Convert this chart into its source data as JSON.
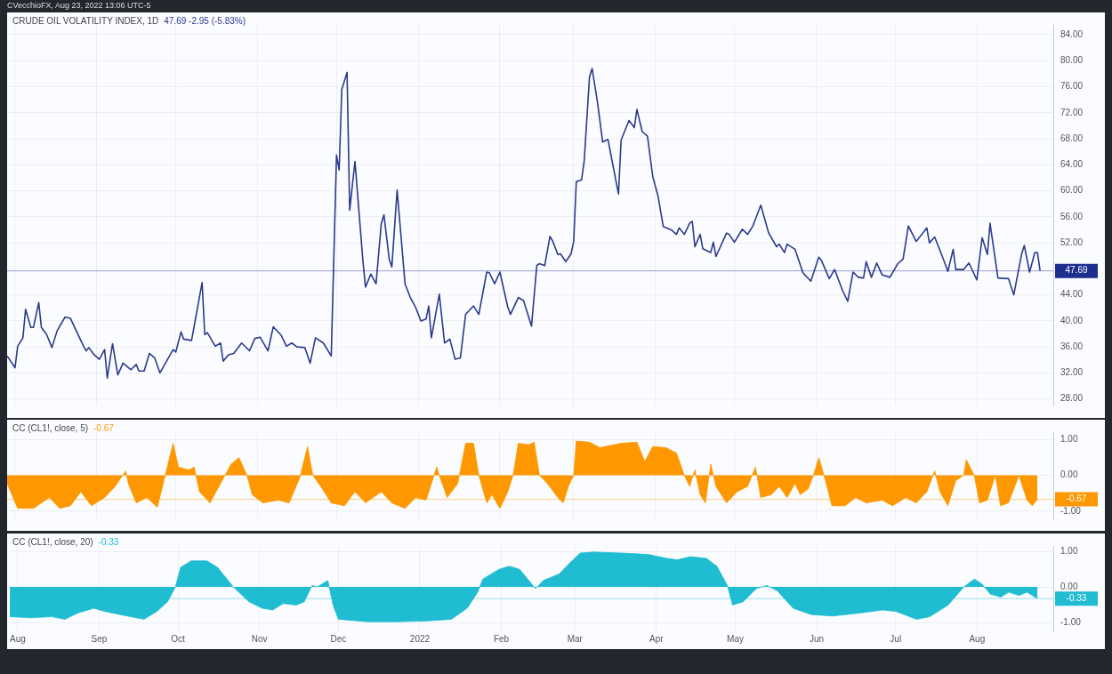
{
  "chart_data": [
    {
      "type": "line",
      "title": "CRUDE OIL VOLATILITY INDEX, 1D",
      "subtitle": "47.69 -2.95 (-5.83%)",
      "annotations": [
        "CVecchioFX, Aug 23, 2022 13:06 UTC-5"
      ],
      "xlim": [
        "2021-07-29",
        "2022-08-30"
      ],
      "xticks": [
        {
          "value": "2021-08-01",
          "label": null
        },
        {
          "value": "2021-09-01",
          "label": null
        },
        {
          "value": "2021-10-01",
          "label": null
        },
        {
          "value": "2021-11-01",
          "label": null
        },
        {
          "value": "2021-12-01",
          "label": null
        },
        {
          "value": "2022-01-01",
          "label": null
        },
        {
          "value": "2022-02-01",
          "label": null
        },
        {
          "value": "2022-03-01",
          "label": null
        },
        {
          "value": "2022-04-01",
          "label": null
        },
        {
          "value": "2022-05-01",
          "label": null
        },
        {
          "value": "2022-06-01",
          "label": null
        },
        {
          "value": "2022-07-01",
          "label": null
        },
        {
          "value": "2022-08-01",
          "label": null
        }
      ],
      "ylim": [
        27,
        85.5
      ],
      "yticks": [
        {
          "value": 28,
          "label": "28.00"
        },
        {
          "value": 32,
          "label": "32.00"
        },
        {
          "value": 36,
          "label": "36.00"
        },
        {
          "value": 40,
          "label": "40.00"
        },
        {
          "value": 44,
          "label": "44.00"
        },
        {
          "value": 52,
          "label": "52.00"
        },
        {
          "value": 56,
          "label": "56.00"
        },
        {
          "value": 60,
          "label": "60.00"
        },
        {
          "value": 64,
          "label": "64.00"
        },
        {
          "value": 68,
          "label": "68.00"
        },
        {
          "value": 72,
          "label": "72.00"
        },
        {
          "value": 76,
          "label": "76.00"
        },
        {
          "value": 80,
          "label": "80.00"
        },
        {
          "value": 84,
          "label": "84.00"
        }
      ],
      "tick_labels": "y",
      "grid": true,
      "legend": false,
      "marker": "none",
      "line_style": "solid",
      "ref_lines": [
        {
          "axis": "y",
          "value": 47.69,
          "label": "47.69",
          "color": "#1c2f8f"
        }
      ],
      "series": [
        {
          "color": "#2a3a8c",
          "x": [
            "2021-07-29",
            "2021-08-01",
            "2021-08-02",
            "2021-08-04",
            "2021-08-05",
            "2021-08-07",
            "2021-08-08",
            "2021-08-10",
            "2021-08-11",
            "2021-08-13",
            "2021-08-15",
            "2021-08-17",
            "2021-08-20",
            "2021-08-22",
            "2021-08-27",
            "2021-08-28",
            "2021-08-29",
            "2021-08-31",
            "2021-09-02",
            "2021-09-04",
            "2021-09-05",
            "2021-09-07",
            "2021-09-09",
            "2021-09-11",
            "2021-09-14",
            "2021-09-16",
            "2021-09-17",
            "2021-09-19",
            "2021-09-21",
            "2021-09-23",
            "2021-09-25",
            "2021-09-30",
            "2021-10-01",
            "2021-10-03",
            "2021-10-04",
            "2021-10-07",
            "2021-10-11",
            "2021-10-12",
            "2021-10-13",
            "2021-10-16",
            "2021-10-18",
            "2021-10-19",
            "2021-10-21",
            "2021-10-23",
            "2021-10-26",
            "2021-10-29",
            "2021-10-31",
            "2021-11-02",
            "2021-11-05",
            "2021-11-07",
            "2021-11-10",
            "2021-11-12",
            "2021-11-14",
            "2021-11-16",
            "2021-11-19",
            "2021-11-21",
            "2021-11-23",
            "2021-11-26",
            "2021-11-29",
            "2021-12-01",
            "2021-12-02",
            "2021-12-03",
            "2021-12-05",
            "2021-12-06",
            "2021-12-08",
            "2021-12-11",
            "2021-12-12",
            "2021-12-14",
            "2021-12-16",
            "2021-12-18",
            "2021-12-19",
            "2021-12-21",
            "2021-12-22",
            "2021-12-24",
            "2021-12-27",
            "2021-12-29",
            "2021-12-31",
            "2022-01-02",
            "2022-01-04",
            "2022-01-05",
            "2022-01-06",
            "2022-01-09",
            "2022-01-11",
            "2022-01-13",
            "2022-01-15",
            "2022-01-17",
            "2022-01-19",
            "2022-01-22",
            "2022-01-24",
            "2022-01-27",
            "2022-01-28",
            "2022-01-30",
            "2022-02-01",
            "2022-02-04",
            "2022-02-05",
            "2022-02-08",
            "2022-02-10",
            "2022-02-13",
            "2022-02-15",
            "2022-02-16",
            "2022-02-18",
            "2022-02-20",
            "2022-02-21",
            "2022-02-23",
            "2022-02-24",
            "2022-02-26",
            "2022-02-28",
            "2022-03-01",
            "2022-03-02",
            "2022-03-04",
            "2022-03-05",
            "2022-03-07",
            "2022-03-08",
            "2022-03-10",
            "2022-03-12",
            "2022-03-14",
            "2022-03-16",
            "2022-03-18",
            "2022-03-19",
            "2022-03-22",
            "2022-03-24",
            "2022-03-25",
            "2022-03-27",
            "2022-03-29",
            "2022-03-31",
            "2022-04-02",
            "2022-04-04",
            "2022-04-07",
            "2022-04-09",
            "2022-04-10",
            "2022-04-12",
            "2022-04-14",
            "2022-04-15",
            "2022-04-16",
            "2022-04-18",
            "2022-04-19",
            "2022-04-22",
            "2022-04-23",
            "2022-04-24",
            "2022-04-28",
            "2022-04-29",
            "2022-05-01",
            "2022-05-04",
            "2022-05-06",
            "2022-05-08",
            "2022-05-11",
            "2022-05-14",
            "2022-05-17",
            "2022-05-18",
            "2022-05-20",
            "2022-05-21",
            "2022-05-24",
            "2022-05-27",
            "2022-05-30",
            "2022-06-02",
            "2022-06-03",
            "2022-06-06",
            "2022-06-08",
            "2022-06-11",
            "2022-06-13",
            "2022-06-15",
            "2022-06-17",
            "2022-06-19",
            "2022-06-20",
            "2022-06-22",
            "2022-06-24",
            "2022-06-26",
            "2022-06-29",
            "2022-07-02",
            "2022-07-04",
            "2022-07-06",
            "2022-07-09",
            "2022-07-13",
            "2022-07-14",
            "2022-07-16",
            "2022-07-19",
            "2022-07-21",
            "2022-07-23",
            "2022-07-24",
            "2022-07-27",
            "2022-07-29",
            "2022-08-01",
            "2022-08-03",
            "2022-08-05",
            "2022-08-06",
            "2022-08-09",
            "2022-08-13",
            "2022-08-15",
            "2022-08-18",
            "2022-08-19",
            "2022-08-21",
            "2022-08-23",
            "2022-08-24",
            "2022-08-25"
          ],
          "values": [
            34.6,
            32.8,
            36.1,
            37.4,
            41.8,
            39.0,
            39.0,
            42.8,
            39.0,
            37.9,
            35.9,
            38.5,
            40.6,
            40.4,
            36.1,
            35.4,
            35.9,
            34.8,
            34.1,
            35.6,
            31.2,
            36.5,
            31.7,
            33.5,
            32.5,
            33.3,
            32.3,
            32.3,
            35.0,
            34.3,
            32.0,
            35.6,
            35.2,
            38.3,
            37.2,
            37.0,
            45.9,
            37.9,
            38.2,
            36.1,
            36.6,
            33.8,
            34.8,
            35.0,
            36.6,
            35.4,
            37.3,
            37.5,
            35.4,
            39.1,
            37.8,
            36.1,
            36.6,
            36.0,
            35.9,
            33.5,
            37.4,
            36.6,
            34.6,
            65.5,
            63.2,
            75.6,
            78.2,
            57.0,
            64.5,
            49.3,
            45.2,
            47.2,
            45.7,
            55.0,
            56.3,
            49.5,
            48.3,
            60.1,
            45.7,
            43.6,
            42.1,
            40.0,
            40.3,
            42.3,
            37.4,
            44.1,
            36.6,
            37.2,
            34.1,
            34.3,
            41.0,
            42.3,
            41.0,
            47.5,
            47.4,
            45.7,
            47.5,
            42.1,
            41.0,
            43.6,
            43.1,
            39.2,
            48.5,
            48.8,
            48.5,
            53.0,
            52.3,
            50.2,
            50.3,
            49.1,
            50.3,
            52.2,
            61.4,
            61.7,
            64.6,
            77.5,
            78.8,
            73.7,
            67.5,
            67.9,
            63.7,
            59.5,
            67.8,
            70.8,
            69.7,
            72.5,
            69.1,
            68.4,
            62.2,
            59.2,
            54.5,
            54.0,
            53.3,
            54.3,
            53.3,
            55.0,
            55.3,
            51.4,
            53.3,
            51.1,
            50.5,
            52.1,
            49.9,
            53.5,
            53.3,
            52.1,
            54.1,
            53.3,
            54.6,
            57.8,
            53.5,
            51.4,
            51.8,
            50.5,
            51.8,
            51.0,
            47.4,
            46.1,
            49.8,
            49.3,
            46.5,
            47.9,
            44.7,
            43.0,
            47.5,
            46.7,
            46.6,
            49.1,
            46.7,
            48.9,
            47.1,
            46.7,
            48.8,
            49.5,
            54.6,
            52.2,
            54.3,
            52.0,
            52.9,
            49.8,
            47.6,
            51.0,
            47.9,
            47.9,
            48.9,
            46.3,
            52.8,
            50.2,
            55.0,
            46.6,
            46.5,
            44.0,
            50.3,
            51.6,
            47.5,
            50.5,
            50.5,
            47.69
          ]
        }
      ]
    },
    {
      "type": "area",
      "title": "CC (CL1!, close, 5)",
      "subtitle": "-0.67",
      "xlim": [
        "2021-07-29",
        "2022-08-30"
      ],
      "xticks": [
        {
          "value": "2021-08-01",
          "label": null
        },
        {
          "value": "2021-09-01",
          "label": null
        },
        {
          "value": "2021-10-01",
          "label": null
        },
        {
          "value": "2021-11-01",
          "label": null
        },
        {
          "value": "2021-12-01",
          "label": null
        },
        {
          "value": "2022-01-01",
          "label": null
        },
        {
          "value": "2022-02-01",
          "label": null
        },
        {
          "value": "2022-03-01",
          "label": null
        },
        {
          "value": "2022-04-01",
          "label": null
        },
        {
          "value": "2022-05-01",
          "label": null
        },
        {
          "value": "2022-06-01",
          "label": null
        },
        {
          "value": "2022-07-01",
          "label": null
        },
        {
          "value": "2022-08-01",
          "label": null
        }
      ],
      "ylim": [
        -1.2,
        1.2
      ],
      "yticks": [
        {
          "value": -1,
          "label": "-1.00"
        },
        {
          "value": 0,
          "label": "0.00"
        },
        {
          "value": 1,
          "label": "1.00"
        }
      ],
      "tick_labels": "y",
      "grid": true,
      "legend": false,
      "marker": "none",
      "ref_lines": [
        {
          "axis": "y",
          "value": -0.67,
          "label": "-0.67",
          "color": "#ff9800"
        }
      ],
      "series": [
        {
          "color": "#ff9800",
          "x": [
            "2021-07-29",
            "2021-08-02",
            "2021-08-08",
            "2021-08-14",
            "2021-08-18",
            "2021-08-22",
            "2021-08-26",
            "2021-08-30",
            "2021-09-04",
            "2021-09-08",
            "2021-09-12",
            "2021-09-13",
            "2021-09-16",
            "2021-09-20",
            "2021-09-24",
            "2021-09-27",
            "2021-09-30",
            "2021-10-02",
            "2021-10-06",
            "2021-10-08",
            "2021-10-10",
            "2021-10-14",
            "2021-10-18",
            "2021-10-22",
            "2021-10-25",
            "2021-10-28",
            "2021-10-30",
            "2021-11-03",
            "2021-11-09",
            "2021-11-13",
            "2021-11-17",
            "2021-11-20",
            "2021-11-22",
            "2021-11-25",
            "2021-11-29",
            "2021-12-04",
            "2021-12-08",
            "2021-12-12",
            "2021-12-18",
            "2021-12-22",
            "2021-12-27",
            "2021-12-31",
            "2022-01-04",
            "2022-01-07",
            "2022-01-08",
            "2022-01-09",
            "2022-01-12",
            "2022-01-16",
            "2022-01-19",
            "2022-01-22",
            "2022-01-24",
            "2022-01-27",
            "2022-01-29",
            "2022-02-01",
            "2022-02-04",
            "2022-02-06",
            "2022-02-08",
            "2022-02-12",
            "2022-02-14",
            "2022-02-16",
            "2022-02-19",
            "2022-02-23",
            "2022-02-25",
            "2022-02-27",
            "2022-03-01",
            "2022-03-02",
            "2022-03-07",
            "2022-03-11",
            "2022-03-19",
            "2022-03-25",
            "2022-03-28",
            "2022-03-31",
            "2022-04-05",
            "2022-04-09",
            "2022-04-12",
            "2022-04-14",
            "2022-04-16",
            "2022-04-18",
            "2022-04-20",
            "2022-04-22",
            "2022-04-24",
            "2022-04-28",
            "2022-05-02",
            "2022-05-06",
            "2022-05-09",
            "2022-05-11",
            "2022-05-15",
            "2022-05-18",
            "2022-05-21",
            "2022-05-24",
            "2022-05-26",
            "2022-05-29",
            "2022-05-31",
            "2022-06-02",
            "2022-06-04",
            "2022-06-07",
            "2022-06-12",
            "2022-06-16",
            "2022-06-20",
            "2022-06-26",
            "2022-06-30",
            "2022-07-05",
            "2022-07-09",
            "2022-07-13",
            "2022-07-16",
            "2022-07-18",
            "2022-07-21",
            "2022-07-24",
            "2022-07-27",
            "2022-07-28",
            "2022-07-31",
            "2022-08-02",
            "2022-08-05",
            "2022-08-08",
            "2022-08-10",
            "2022-08-13",
            "2022-08-17",
            "2022-08-20",
            "2022-08-22",
            "2022-08-24"
          ],
          "values": [
            -0.23,
            -0.92,
            -0.92,
            -0.62,
            -0.92,
            -0.85,
            -0.46,
            -0.85,
            -0.62,
            -0.31,
            0.12,
            -0.23,
            -0.77,
            -0.62,
            -0.89,
            0,
            0.89,
            0.23,
            0.15,
            0.23,
            -0.46,
            -0.77,
            -0.23,
            0.31,
            0.49,
            0,
            -0.54,
            -0.77,
            -0.69,
            -0.77,
            -0.08,
            0.8,
            0,
            -0.31,
            -0.77,
            -0.85,
            -0.46,
            -0.77,
            -0.46,
            -0.77,
            -0.92,
            -0.62,
            -0.69,
            0,
            0.23,
            0,
            -0.62,
            -0.23,
            0.89,
            0.89,
            0,
            -0.77,
            -0.54,
            -0.92,
            -0.46,
            0,
            0.89,
            0.85,
            0.92,
            0,
            -0.23,
            -0.62,
            -0.77,
            -0.31,
            0,
            0.95,
            0.92,
            0.77,
            0.89,
            0.92,
            0.38,
            0.8,
            0.77,
            0.62,
            0,
            -0.31,
            0.15,
            -0.54,
            -0.77,
            0.31,
            -0.31,
            -0.77,
            -0.46,
            -0.31,
            0.23,
            -0.62,
            -0.54,
            -0.31,
            -0.62,
            -0.23,
            -0.54,
            -0.38,
            0,
            0.49,
            0,
            -0.85,
            -0.85,
            -0.62,
            -0.77,
            -0.69,
            -0.85,
            -0.62,
            -0.77,
            -0.46,
            0.12,
            -0.46,
            -0.85,
            -0.15,
            0,
            0.43,
            0,
            -0.77,
            -0.69,
            0,
            -0.85,
            -0.77,
            0,
            -0.69,
            -0.85,
            -0.67
          ]
        }
      ]
    },
    {
      "type": "area",
      "title": "CC (CL1!, close, 20)",
      "subtitle": "-0.33",
      "xlim": [
        "2021-07-29",
        "2022-08-30"
      ],
      "xticks": [
        {
          "value": "2021-08-01",
          "label": "Aug"
        },
        {
          "value": "2021-09-01",
          "label": "Sep"
        },
        {
          "value": "2021-10-01",
          "label": "Oct"
        },
        {
          "value": "2021-11-01",
          "label": "Nov"
        },
        {
          "value": "2021-12-01",
          "label": "Dec"
        },
        {
          "value": "2022-01-01",
          "label": "2022"
        },
        {
          "value": "2022-02-01",
          "label": "Feb"
        },
        {
          "value": "2022-03-01",
          "label": "Mar"
        },
        {
          "value": "2022-04-01",
          "label": "Apr"
        },
        {
          "value": "2022-05-01",
          "label": "May"
        },
        {
          "value": "2022-06-01",
          "label": "Jun"
        },
        {
          "value": "2022-07-01",
          "label": "Jul"
        },
        {
          "value": "2022-08-01",
          "label": "Aug"
        }
      ],
      "ylim": [
        -1.25,
        1.15
      ],
      "yticks": [
        {
          "value": -1,
          "label": "-1.00"
        },
        {
          "value": 0,
          "label": "0.00"
        },
        {
          "value": 1,
          "label": "1.00"
        }
      ],
      "grid": true,
      "legend": false,
      "marker": "none",
      "ref_lines": [
        {
          "axis": "y",
          "value": -0.33,
          "label": "-0.33",
          "color": "#1fbcd2"
        }
      ],
      "series": [
        {
          "color": "#1fbcd2",
          "x": [
            "2021-07-29",
            "2021-08-06",
            "2021-08-14",
            "2021-08-19",
            "2021-08-24",
            "2021-08-30",
            "2021-09-03",
            "2021-09-09",
            "2021-09-18",
            "2021-09-23",
            "2021-09-27",
            "2021-09-30",
            "2021-10-02",
            "2021-10-06",
            "2021-10-12",
            "2021-10-16",
            "2021-10-22",
            "2021-10-28",
            "2021-11-02",
            "2021-11-06",
            "2021-11-10",
            "2021-11-15",
            "2021-11-18",
            "2021-11-21",
            "2021-11-23",
            "2021-11-26",
            "2021-11-27",
            "2021-11-29",
            "2021-12-01",
            "2021-12-12",
            "2021-12-23",
            "2022-01-03",
            "2022-01-13",
            "2022-01-19",
            "2022-01-23",
            "2022-01-25",
            "2022-01-31",
            "2022-02-04",
            "2022-02-08",
            "2022-02-12",
            "2022-02-14",
            "2022-02-17",
            "2022-02-23",
            "2022-02-27",
            "2022-03-03",
            "2022-03-08",
            "2022-03-19",
            "2022-03-29",
            "2022-04-05",
            "2022-04-09",
            "2022-04-14",
            "2022-04-20",
            "2022-04-24",
            "2022-04-28",
            "2022-04-30",
            "2022-05-04",
            "2022-05-09",
            "2022-05-13",
            "2022-05-17",
            "2022-05-23",
            "2022-05-30",
            "2022-06-07",
            "2022-06-18",
            "2022-06-26",
            "2022-07-01",
            "2022-07-09",
            "2022-07-14",
            "2022-07-21",
            "2022-07-27",
            "2022-07-31",
            "2022-08-03",
            "2022-08-06",
            "2022-08-10",
            "2022-08-13",
            "2022-08-17",
            "2022-08-20",
            "2022-08-24"
          ],
          "values": [
            -0.84,
            -0.87,
            -0.84,
            -0.91,
            -0.73,
            -0.6,
            -0.69,
            -0.78,
            -0.91,
            -0.69,
            -0.42,
            0,
            0.55,
            0.73,
            0.73,
            0.55,
            0,
            -0.42,
            -0.6,
            -0.65,
            -0.47,
            -0.51,
            -0.42,
            0.04,
            0,
            0.13,
            0.18,
            -0.51,
            -0.91,
            -0.98,
            -0.98,
            -0.96,
            -0.91,
            -0.6,
            -0.15,
            0.22,
            0.49,
            0.58,
            0.49,
            0.13,
            -0.05,
            0.18,
            0.36,
            0.67,
            0.95,
            0.98,
            0.95,
            0.91,
            0.8,
            0.76,
            0.85,
            0.8,
            0.58,
            0.04,
            -0.51,
            -0.42,
            -0.05,
            0.04,
            -0.11,
            -0.6,
            -0.78,
            -0.82,
            -0.73,
            -0.65,
            -0.69,
            -0.91,
            -0.84,
            -0.51,
            0,
            0.22,
            0.07,
            -0.2,
            -0.29,
            -0.15,
            -0.24,
            -0.15,
            -0.33
          ]
        }
      ]
    }
  ]
}
